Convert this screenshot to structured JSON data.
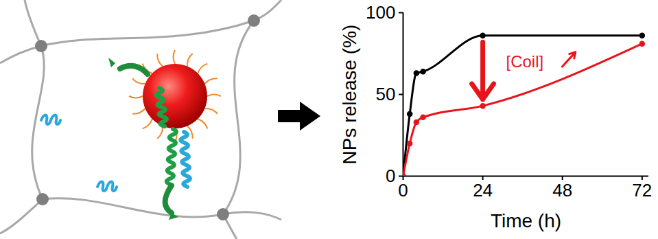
{
  "chart_data": {
    "type": "line",
    "xlabel": "Time (h)",
    "ylabel": "NPs release (%)",
    "x": [
      0,
      2,
      4,
      6,
      24,
      72
    ],
    "xlim": [
      0,
      74
    ],
    "xticks": [
      0,
      24,
      48,
      72
    ],
    "ylim": [
      0,
      100
    ],
    "yticks": [
      0,
      50,
      100
    ],
    "grid": false,
    "series": [
      {
        "color": "#000000",
        "marker": "circle",
        "values": [
          0,
          38,
          63,
          64,
          86,
          86
        ]
      },
      {
        "color": "#e8141c",
        "marker": "circle",
        "values": [
          0,
          20,
          33,
          36,
          43,
          81
        ]
      }
    ],
    "annotations": [
      {
        "text": "[Coil]",
        "x": 31,
        "y": 70,
        "color": "#e8141c"
      }
    ]
  }
}
